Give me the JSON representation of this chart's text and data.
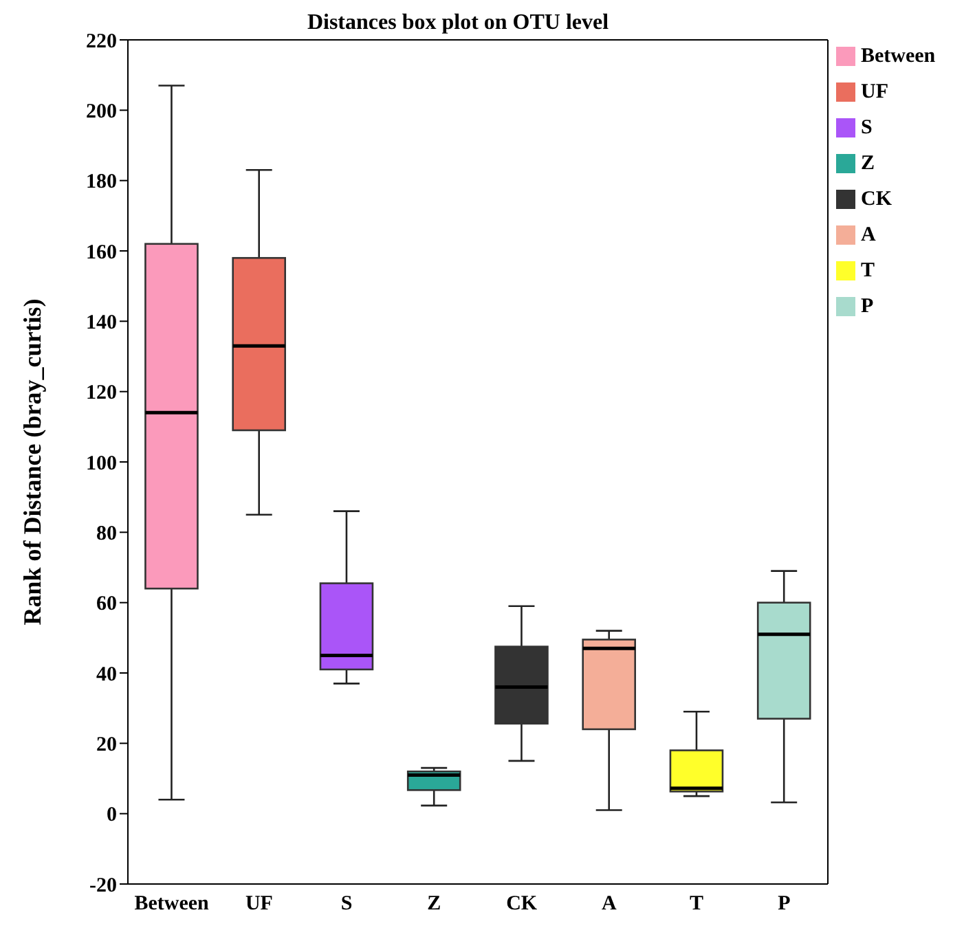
{
  "chart_data": {
    "type": "box",
    "title": "Distances box plot on OTU level",
    "ylabel": "Rank of Distance (bray_curtis)",
    "categories": [
      "Between",
      "UF",
      "S",
      "Z",
      "CK",
      "A",
      "T",
      "P"
    ],
    "series": [
      {
        "name": "Between",
        "color": "#fb9abb",
        "boxes": [
          {
            "low": 4,
            "q1": 64,
            "median": 114,
            "q3": 162,
            "high": 207
          },
          null,
          null,
          null,
          null,
          null,
          null,
          null
        ]
      },
      {
        "name": "UF",
        "color": "#ea6e5e",
        "boxes": [
          null,
          {
            "low": 85,
            "q1": 109,
            "median": 133,
            "q3": 158,
            "high": 183
          },
          null,
          null,
          null,
          null,
          null,
          null
        ]
      },
      {
        "name": "S",
        "color": "#aa55f8",
        "boxes": [
          null,
          null,
          {
            "low": 37,
            "q1": 41,
            "median": 45,
            "q3": 65.5,
            "high": 86
          },
          null,
          null,
          null,
          null,
          null
        ]
      },
      {
        "name": "Z",
        "color": "#2aa898",
        "boxes": [
          null,
          null,
          null,
          {
            "low": 2.3,
            "q1": 6.7,
            "median": 11,
            "q3": 12,
            "high": 13
          },
          null,
          null,
          null,
          null
        ]
      },
      {
        "name": "CK",
        "color": "#333333",
        "boxes": [
          null,
          null,
          null,
          null,
          {
            "low": 15,
            "q1": 25.6,
            "median": 36,
            "q3": 47.5,
            "high": 59
          },
          null,
          null,
          null
        ]
      },
      {
        "name": "A",
        "color": "#f4ae98",
        "boxes": [
          null,
          null,
          null,
          null,
          null,
          {
            "low": 1,
            "q1": 24,
            "median": 47,
            "q3": 49.5,
            "high": 52
          },
          null,
          null
        ]
      },
      {
        "name": "T",
        "color": "#ffff2a",
        "boxes": [
          null,
          null,
          null,
          null,
          null,
          null,
          {
            "low": 5,
            "q1": 6.3,
            "median": 7.2,
            "q3": 18,
            "high": 29
          },
          null
        ]
      },
      {
        "name": "P",
        "color": "#a8dbcd",
        "boxes": [
          null,
          null,
          null,
          null,
          null,
          null,
          null,
          {
            "low": 3.2,
            "q1": 27,
            "median": 51,
            "q3": 60,
            "high": 69
          }
        ]
      }
    ],
    "ylim": [
      -20,
      220
    ],
    "yticks": [
      -20,
      0,
      20,
      40,
      60,
      80,
      100,
      120,
      140,
      160,
      180,
      200,
      220
    ],
    "legend": "right",
    "grid": false
  }
}
